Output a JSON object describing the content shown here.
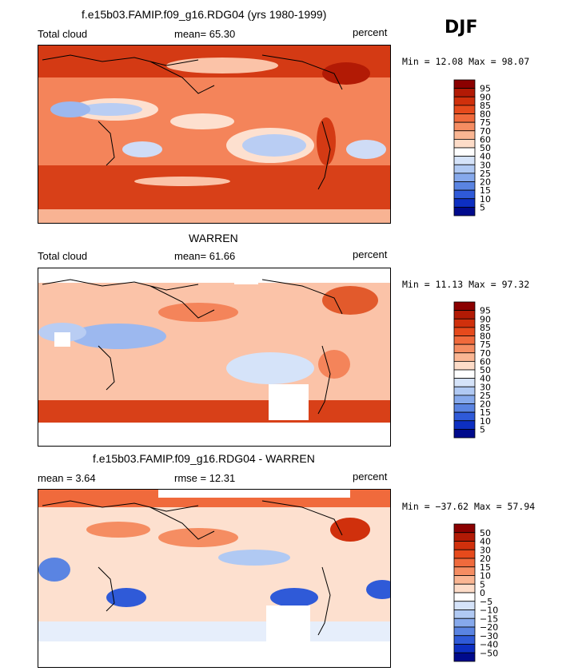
{
  "season": "DJF",
  "panels": [
    {
      "title": "f.e15b03.FAMIP.f09_g16.RDG04 (yrs 1980-1999)",
      "left_label": "Total cloud",
      "center_label": "mean=  65.30",
      "units": "percent",
      "minmax": "Min =  12.08 Max =  98.07",
      "colorbar_levels": [
        "95",
        "90",
        "85",
        "80",
        "75",
        "70",
        "60",
        "50",
        "40",
        "30",
        "25",
        "20",
        "15",
        "10",
        "5"
      ]
    },
    {
      "title": "WARREN",
      "left_label": "Total cloud",
      "center_label": "mean=  61.66",
      "units": "percent",
      "minmax": "Min =  11.13 Max =  97.32",
      "colorbar_levels": [
        "95",
        "90",
        "85",
        "80",
        "75",
        "70",
        "60",
        "50",
        "40",
        "30",
        "25",
        "20",
        "15",
        "10",
        "5"
      ]
    },
    {
      "title": "f.e15b03.FAMIP.f09_g16.RDG04 - WARREN",
      "left_label": "mean =   3.64",
      "center_label": "rmse =  12.31",
      "units": "percent",
      "minmax": "Min = −37.62 Max =  57.94",
      "colorbar_levels": [
        "50",
        "40",
        "30",
        "20",
        "15",
        "10",
        "5",
        "0",
        "−5",
        "−10",
        "−15",
        "−20",
        "−30",
        "−40",
        "−50"
      ]
    }
  ],
  "colors": {
    "colorbar": [
      "#8b0000",
      "#b21a05",
      "#d0300c",
      "#e64a1c",
      "#f06a3c",
      "#f58d62",
      "#fab693",
      "#fddcc8",
      "#ffffff",
      "#d5e3f9",
      "#b0c9f3",
      "#86a9ec",
      "#5a84e2",
      "#2f5ad8",
      "#0d2fc2",
      "#000a8c"
    ]
  }
}
